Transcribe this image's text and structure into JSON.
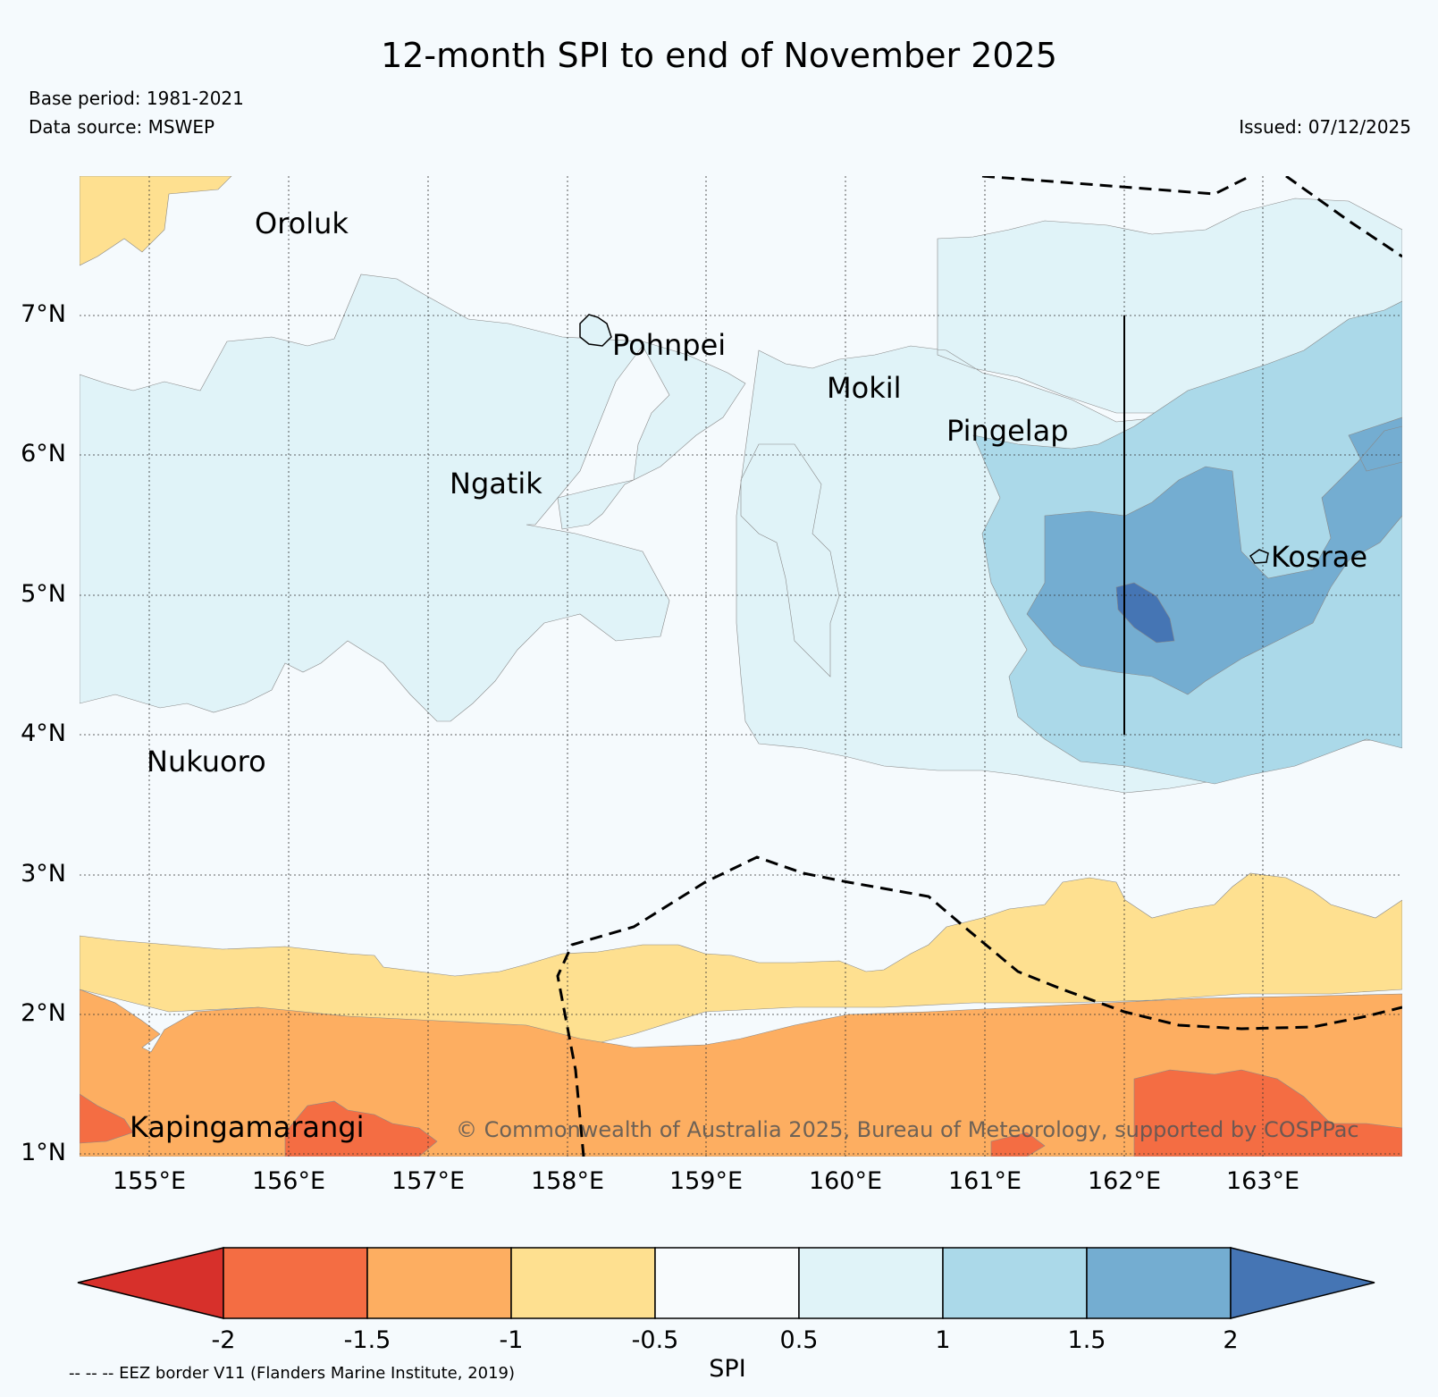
{
  "header": {
    "title": "12-month SPI to end of November 2025",
    "base_period": "Base period: 1981-2021",
    "data_source": "Data source: MSWEP",
    "issued": "Issued: 07/12/2025"
  },
  "map": {
    "lat_labels": [
      "7°N",
      "6°N",
      "5°N",
      "4°N",
      "3°N",
      "2°N",
      "1°N"
    ],
    "lon_labels": [
      "155°E",
      "156°E",
      "157°E",
      "158°E",
      "159°E",
      "160°E",
      "161°E",
      "162°E",
      "163°E"
    ],
    "places": [
      "Oroluk",
      "Pohnpei",
      "Mokil",
      "Pingelap",
      "Ngatik",
      "Kosrae",
      "Nukuoro",
      "Kapingamarangi"
    ],
    "copyright": "© Commonwealth of Australia 2025, Bureau of Meteorology, supported by COSPPac"
  },
  "colorbar": {
    "label": "SPI",
    "ticks": [
      "-2",
      "-1.5",
      "-1",
      "-0.5",
      "0.5",
      "1",
      "1.5",
      "2"
    ],
    "colors": [
      "#d7302b",
      "#f46d43",
      "#fdae61",
      "#fee090",
      "#f8fbfd",
      "#e0f3f8",
      "#abd9e9",
      "#74add1",
      "#4575b4"
    ]
  },
  "footer": {
    "eez_note": "-- -- -- EEZ border V11 (Flanders Marine Institute, 2019)"
  }
}
